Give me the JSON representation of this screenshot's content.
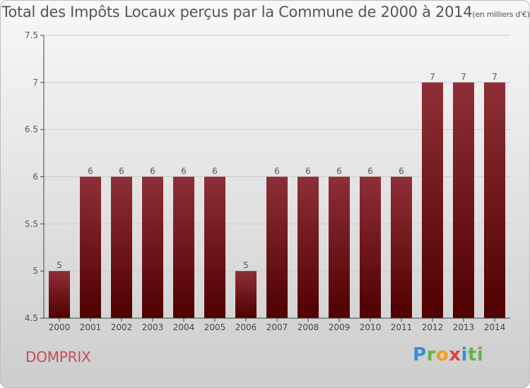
{
  "title": "Total des Impôts Locaux perçus par la Commune de 2000 à 2014",
  "subtitle": "(en milliers d'€)",
  "commune": "DOMPRIX",
  "brand": [
    "P",
    "r",
    "o",
    "x",
    "i",
    "ti"
  ],
  "colors": {
    "bar_top": "#8e2f37",
    "bar_bottom": "#4f0000",
    "axis": "#444444",
    "grid": "#cccccc"
  },
  "chart_data": {
    "type": "bar",
    "title": "Total des Impôts Locaux perçus par la Commune de 2000 à 2014",
    "xlabel": "",
    "ylabel": "",
    "categories": [
      "2000",
      "2001",
      "2002",
      "2003",
      "2004",
      "2005",
      "2006",
      "2007",
      "2008",
      "2009",
      "2010",
      "2011",
      "2012",
      "2013",
      "2014"
    ],
    "values": [
      5,
      6,
      6,
      6,
      6,
      6,
      5,
      6,
      6,
      6,
      6,
      6,
      7,
      7,
      7
    ],
    "ylim": [
      4.5,
      7.5
    ],
    "yticks": [
      4.5,
      5,
      5.5,
      6,
      6.5,
      7,
      7.5
    ],
    "ytick_labels": [
      "4.5",
      "5",
      "5.5",
      "6",
      "6.5",
      "7",
      "7.5"
    ],
    "grid": true,
    "legend": "none"
  }
}
